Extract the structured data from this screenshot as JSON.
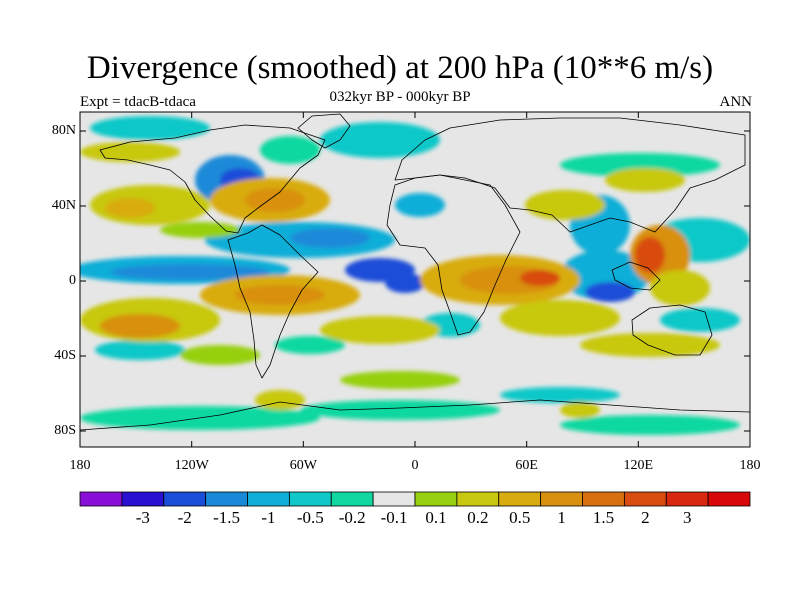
{
  "title": "Divergence (smoothed) at 200 hPa (10**6 m/s)",
  "subtitle": "032kyr BP - 000kyr BP",
  "experiment": "Expt = tdacB-tdaca",
  "season": "ANN",
  "map": {
    "projection": "cylindrical equidistant",
    "lat_ticks": [
      "80N",
      "40N",
      "0",
      "40S",
      "80S"
    ],
    "lon_ticks": [
      "180",
      "120W",
      "60W",
      "0",
      "60E",
      "120E",
      "180"
    ],
    "neutral_color": "#e6e6e6",
    "coastline_color": "#000000"
  },
  "colorbar": {
    "colors": [
      "#8a10d8",
      "#2a10d0",
      "#1a4ed8",
      "#1a8ad8",
      "#10aed8",
      "#10c8c8",
      "#10d8a0",
      "#e6e6e6",
      "#96d010",
      "#c8c810",
      "#d8ac10",
      "#d89010",
      "#d87010",
      "#d84c10",
      "#d82810",
      "#d80808"
    ],
    "labels": [
      "-3",
      "-2",
      "-1.5",
      "-1",
      "-0.5",
      "-0.2",
      "-0.1",
      "0.1",
      "0.2",
      "0.5",
      "1",
      "1.5",
      "2",
      "3"
    ]
  }
}
